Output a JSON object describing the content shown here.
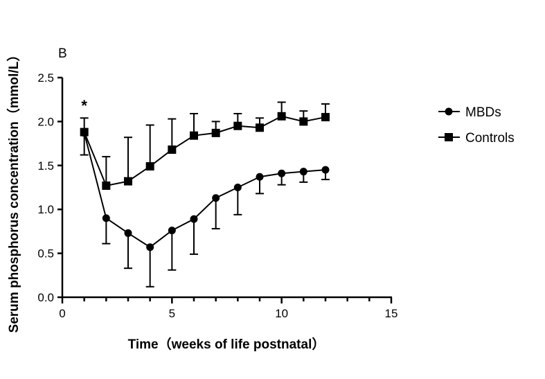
{
  "chart_data": {
    "type": "line",
    "panel_label": "B",
    "xlabel": "Time（weeks of life postnatal）",
    "ylabel": "Serum phosphorus concentration（mmol/L）",
    "xlim": [
      0,
      15
    ],
    "ylim": [
      0,
      2.5
    ],
    "xticks": [
      0,
      5,
      10,
      15
    ],
    "yticks": [
      "0.0",
      "0.5",
      "1.0",
      "1.5",
      "2.0",
      "2.5"
    ],
    "x": [
      1,
      2,
      3,
      4,
      5,
      6,
      7,
      8,
      9,
      10,
      11,
      12
    ],
    "legend_position": "right",
    "annotations": [
      {
        "text": "*",
        "x": 1
      }
    ],
    "series": [
      {
        "name": "MBDs",
        "marker": "circle",
        "error_direction": "down",
        "values": [
          1.87,
          0.9,
          0.73,
          0.57,
          0.76,
          0.89,
          1.13,
          1.25,
          1.37,
          1.41,
          1.43,
          1.45
        ],
        "error": [
          0.25,
          0.29,
          0.4,
          0.45,
          0.45,
          0.4,
          0.35,
          0.31,
          0.19,
          0.13,
          0.12,
          0.11
        ]
      },
      {
        "name": "Controls",
        "marker": "square",
        "error_direction": "up",
        "values": [
          1.88,
          1.27,
          1.32,
          1.49,
          1.68,
          1.84,
          1.87,
          1.95,
          1.93,
          2.06,
          2.0,
          2.05
        ],
        "error": [
          0.16,
          0.33,
          0.5,
          0.47,
          0.35,
          0.25,
          0.13,
          0.14,
          0.11,
          0.16,
          0.12,
          0.15
        ]
      }
    ]
  }
}
